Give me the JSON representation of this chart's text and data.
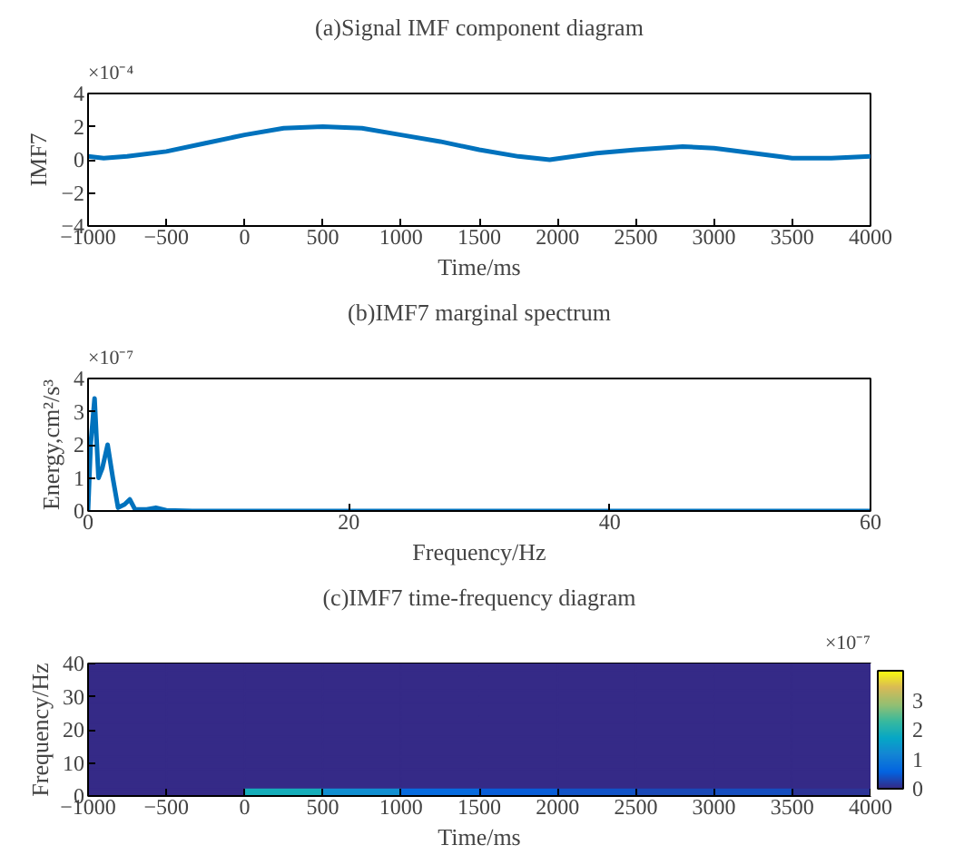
{
  "chart_data": [
    {
      "type": "line",
      "title": "(a)Signal IMF component diagram",
      "xlabel": "Time/ms",
      "ylabel": "IMF7",
      "annotations": [
        "×10⁻⁴"
      ],
      "x": [
        -1000,
        -900,
        -750,
        -500,
        -250,
        0,
        250,
        500,
        750,
        1000,
        1250,
        1500,
        1750,
        1950,
        2250,
        2500,
        2800,
        3000,
        3250,
        3500,
        3750,
        4000
      ],
      "series": [
        {
          "color": "#0072bd",
          "values": [
            0.2,
            0.1,
            0.2,
            0.5,
            1.0,
            1.5,
            1.9,
            2.0,
            1.9,
            1.5,
            1.1,
            0.6,
            0.2,
            0.0,
            0.4,
            0.6,
            0.8,
            0.7,
            0.4,
            0.1,
            0.1,
            0.2
          ]
        }
      ],
      "xlim": [
        -1000,
        4000
      ],
      "xticks": [
        -1000,
        -500,
        0,
        500,
        1000,
        1500,
        2000,
        2500,
        3000,
        3500,
        4000
      ],
      "ylim": [
        -4,
        4
      ],
      "yticks": [
        -4,
        -2,
        0,
        2,
        4
      ],
      "grid": false
    },
    {
      "type": "line",
      "title": "(b)IMF7 marginal spectrum",
      "xlabel": "Frequency/Hz",
      "ylabel": "Energy,cm²/s³",
      "annotations": [
        "×10⁻⁷"
      ],
      "x": [
        0,
        0.2,
        0.5,
        0.8,
        1.1,
        1.5,
        1.9,
        2.3,
        2.8,
        3.2,
        3.6,
        4.5,
        5.2,
        6,
        8,
        60
      ],
      "series": [
        {
          "color": "#0072bd",
          "values": [
            0,
            2.0,
            3.4,
            1.0,
            1.3,
            2.0,
            1.0,
            0.1,
            0.2,
            0.35,
            0.05,
            0.05,
            0.1,
            0.02,
            0,
            0
          ]
        }
      ],
      "xlim": [
        0,
        60
      ],
      "xticks": [
        0,
        20,
        40,
        60
      ],
      "ylim": [
        0,
        4
      ],
      "yticks": [
        0,
        1,
        2,
        3,
        4
      ],
      "grid": false
    },
    {
      "type": "heatmap",
      "title": "(c)IMF7 time-frequency diagram",
      "xlabel": "Time/ms",
      "ylabel": "Frequency/Hz",
      "clabel": "×10⁻⁷",
      "x": [
        -750,
        -250,
        250,
        750,
        1250,
        1750,
        2250,
        2750,
        3250,
        3750
      ],
      "cells": [
        [
          0,
          0,
          0,
          0,
          0,
          0,
          0,
          0,
          0,
          0
        ],
        [
          0,
          0,
          0,
          0,
          0,
          0,
          0,
          0,
          0,
          0
        ],
        [
          0,
          0,
          0,
          0,
          0,
          0,
          0,
          0,
          0,
          0
        ],
        [
          0,
          0,
          0,
          0,
          0,
          0,
          0,
          0,
          0,
          0
        ],
        [
          0,
          0,
          0,
          0,
          0,
          0,
          0,
          0,
          0,
          0
        ],
        [
          0,
          0,
          0,
          0,
          0,
          0,
          0,
          0,
          0,
          0
        ],
        [
          0,
          0,
          0,
          0,
          0,
          0,
          0,
          0,
          0,
          0
        ],
        [
          0,
          0,
          0,
          0,
          0,
          0,
          0,
          0,
          0,
          0
        ],
        [
          0,
          0,
          0,
          0,
          0,
          0,
          0,
          0,
          0,
          0
        ],
        [
          0,
          0,
          0,
          0,
          0,
          0,
          0,
          0,
          0,
          0
        ],
        [
          0,
          0,
          0,
          0,
          0,
          0,
          0,
          0,
          0,
          0
        ],
        [
          0,
          0,
          0,
          0,
          0,
          0,
          0,
          0,
          0,
          0
        ],
        [
          0,
          0,
          0,
          0,
          0,
          0,
          0,
          0,
          0,
          0
        ],
        [
          0,
          0,
          0,
          0,
          0,
          0,
          0,
          0,
          0,
          0
        ],
        [
          0,
          0,
          0,
          0,
          0,
          0,
          0,
          0,
          0,
          0
        ],
        [
          0,
          0,
          0,
          0,
          0,
          0,
          0,
          0,
          0,
          0
        ],
        [
          0,
          0,
          0,
          0,
          0,
          0,
          0,
          0,
          0,
          0
        ],
        [
          0,
          0,
          0,
          0,
          0,
          0,
          0,
          0,
          0,
          0
        ],
        [
          0,
          0,
          0,
          0,
          0,
          0,
          0,
          0,
          0,
          0
        ],
        [
          0,
          0,
          1.9,
          1.3,
          0.7,
          0.5,
          0.4,
          0.3,
          0.35,
          0.1
        ]
      ],
      "xlim": [
        -1000,
        4000
      ],
      "xticks": [
        -1000,
        -500,
        0,
        500,
        1000,
        1500,
        2000,
        2500,
        3000,
        3500,
        4000
      ],
      "ylim": [
        0,
        40
      ],
      "yticks": [
        0,
        10,
        20,
        30,
        40
      ],
      "clim": [
        0,
        4
      ],
      "cticks": [
        0,
        1,
        2,
        3
      ]
    }
  ]
}
